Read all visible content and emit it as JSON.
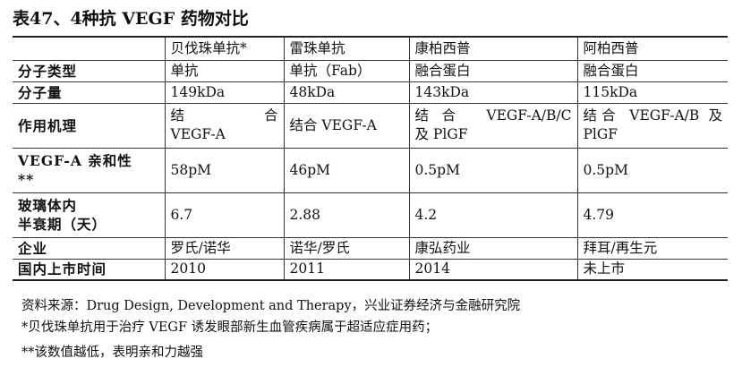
{
  "title": "表47、4种抗 VEGF 药物对比",
  "columns": [
    "",
    "贝伐珠单抗*",
    "雷珠单抗",
    "康柏西普",
    "阿柏西普"
  ],
  "rows": [
    {
      "label": [
        "分子类型"
      ],
      "cells": [
        [
          "单抗"
        ],
        [
          "单抗（Fab）"
        ],
        [
          "融合蛋白"
        ],
        [
          "融合蛋白"
        ]
      ]
    },
    {
      "label": [
        "分子量"
      ],
      "cells": [
        [
          "149kDa"
        ],
        [
          "48kDa"
        ],
        [
          "143kDa"
        ],
        [
          "115kDa"
        ]
      ]
    },
    {
      "label": [
        "作用机理"
      ],
      "cells": [
        [
          "结合",
          "VEGF-A"
        ],
        [
          "结合 VEGF-A"
        ],
        [
          "结合 VEGF-A/B/C",
          "及 PlGF"
        ],
        [
          "结合 VEGF-A/B 及",
          "PlGF"
        ]
      ]
    },
    {
      "label": [
        "VEGF-A 亲和性",
        "**"
      ],
      "cells": [
        [
          "58pM"
        ],
        [
          "46pM"
        ],
        [
          "0.5pM"
        ],
        [
          "0.5pM"
        ]
      ]
    },
    {
      "label": [
        "玻璃体内",
        "半衰期（天）"
      ],
      "cells": [
        [
          "6.7"
        ],
        [
          "2.88"
        ],
        [
          "4.2"
        ],
        [
          "4.79"
        ]
      ]
    },
    {
      "label": [
        "企业"
      ],
      "cells": [
        [
          "罗氏/诺华"
        ],
        [
          "诺华/罗氏"
        ],
        [
          "康弘药业"
        ],
        [
          "拜耳/再生元"
        ]
      ]
    },
    {
      "label": [
        "国内上市时间"
      ],
      "cells": [
        [
          "2010"
        ],
        [
          "2011"
        ],
        [
          "2014"
        ],
        [
          "未上市"
        ]
      ]
    }
  ],
  "source": "资料来源：Drug Design, Development and Therapy，兴业证券经济与金融研究院",
  "notes": [
    "*贝伐珠单抗用于治疗 VEGF 诱发眼部新生血管疾病属于超适应症用药；",
    "**该数值越低，表明亲和力越强"
  ]
}
